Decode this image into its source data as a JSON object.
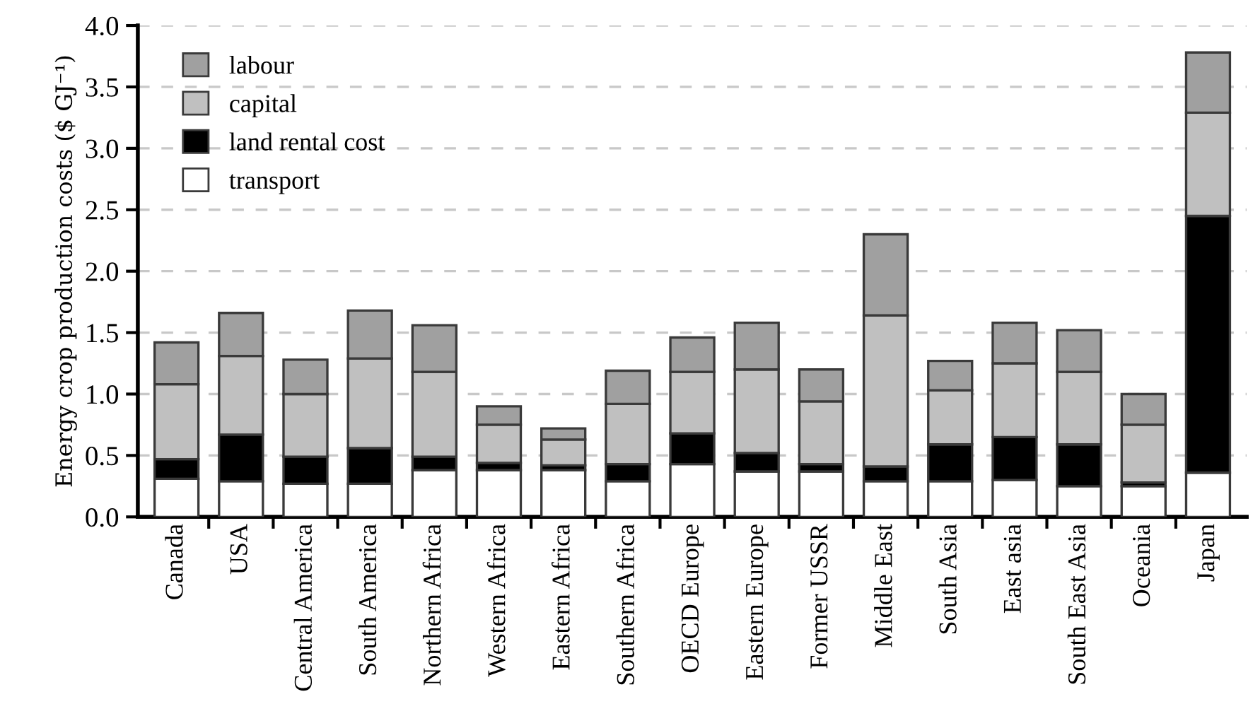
{
  "chart_data": {
    "type": "bar",
    "stacked": true,
    "ylabel": "Energy crop production costs ($ GJ⁻¹)",
    "categories": [
      "Canada",
      "USA",
      "Central America",
      "South America",
      "Northern Africa",
      "Western Africa",
      "Eastern Africa",
      "Southern Africa",
      "OECD Europe",
      "Eastern Europe",
      "Former USSR",
      "Middle East",
      "South Asia",
      "East asia",
      "South East Asia",
      "Oceania",
      "Japan"
    ],
    "series": [
      {
        "name": "transport",
        "color": "#ffffff",
        "values": [
          0.31,
          0.29,
          0.27,
          0.27,
          0.38,
          0.38,
          0.38,
          0.29,
          0.43,
          0.37,
          0.37,
          0.29,
          0.29,
          0.3,
          0.25,
          0.25,
          0.36
        ]
      },
      {
        "name": "land rental cost",
        "color": "#000000",
        "values": [
          0.16,
          0.38,
          0.22,
          0.29,
          0.11,
          0.06,
          0.04,
          0.14,
          0.25,
          0.15,
          0.06,
          0.12,
          0.3,
          0.35,
          0.34,
          0.03,
          2.09
        ]
      },
      {
        "name": "capital",
        "color": "#c0c0c0",
        "values": [
          0.61,
          0.64,
          0.51,
          0.73,
          0.69,
          0.31,
          0.21,
          0.49,
          0.5,
          0.68,
          0.51,
          1.23,
          0.44,
          0.6,
          0.59,
          0.47,
          0.84
        ]
      },
      {
        "name": "labour",
        "color": "#a0a0a0",
        "values": [
          0.34,
          0.35,
          0.28,
          0.39,
          0.38,
          0.15,
          0.09,
          0.27,
          0.28,
          0.38,
          0.26,
          0.66,
          0.24,
          0.33,
          0.34,
          0.25,
          0.49
        ]
      }
    ],
    "ylim": [
      0,
      4.0
    ],
    "yticks": [
      {
        "value": 0,
        "label": "0.0"
      },
      0.5,
      {
        "value": 1,
        "label": "1.0"
      },
      1.5,
      {
        "value": 2,
        "label": "2.0"
      },
      2.5,
      {
        "value": 3,
        "label": "3.0"
      },
      3.5,
      {
        "value": 4,
        "label": "4.0"
      }
    ],
    "grid": "y",
    "legend": "top left"
  }
}
